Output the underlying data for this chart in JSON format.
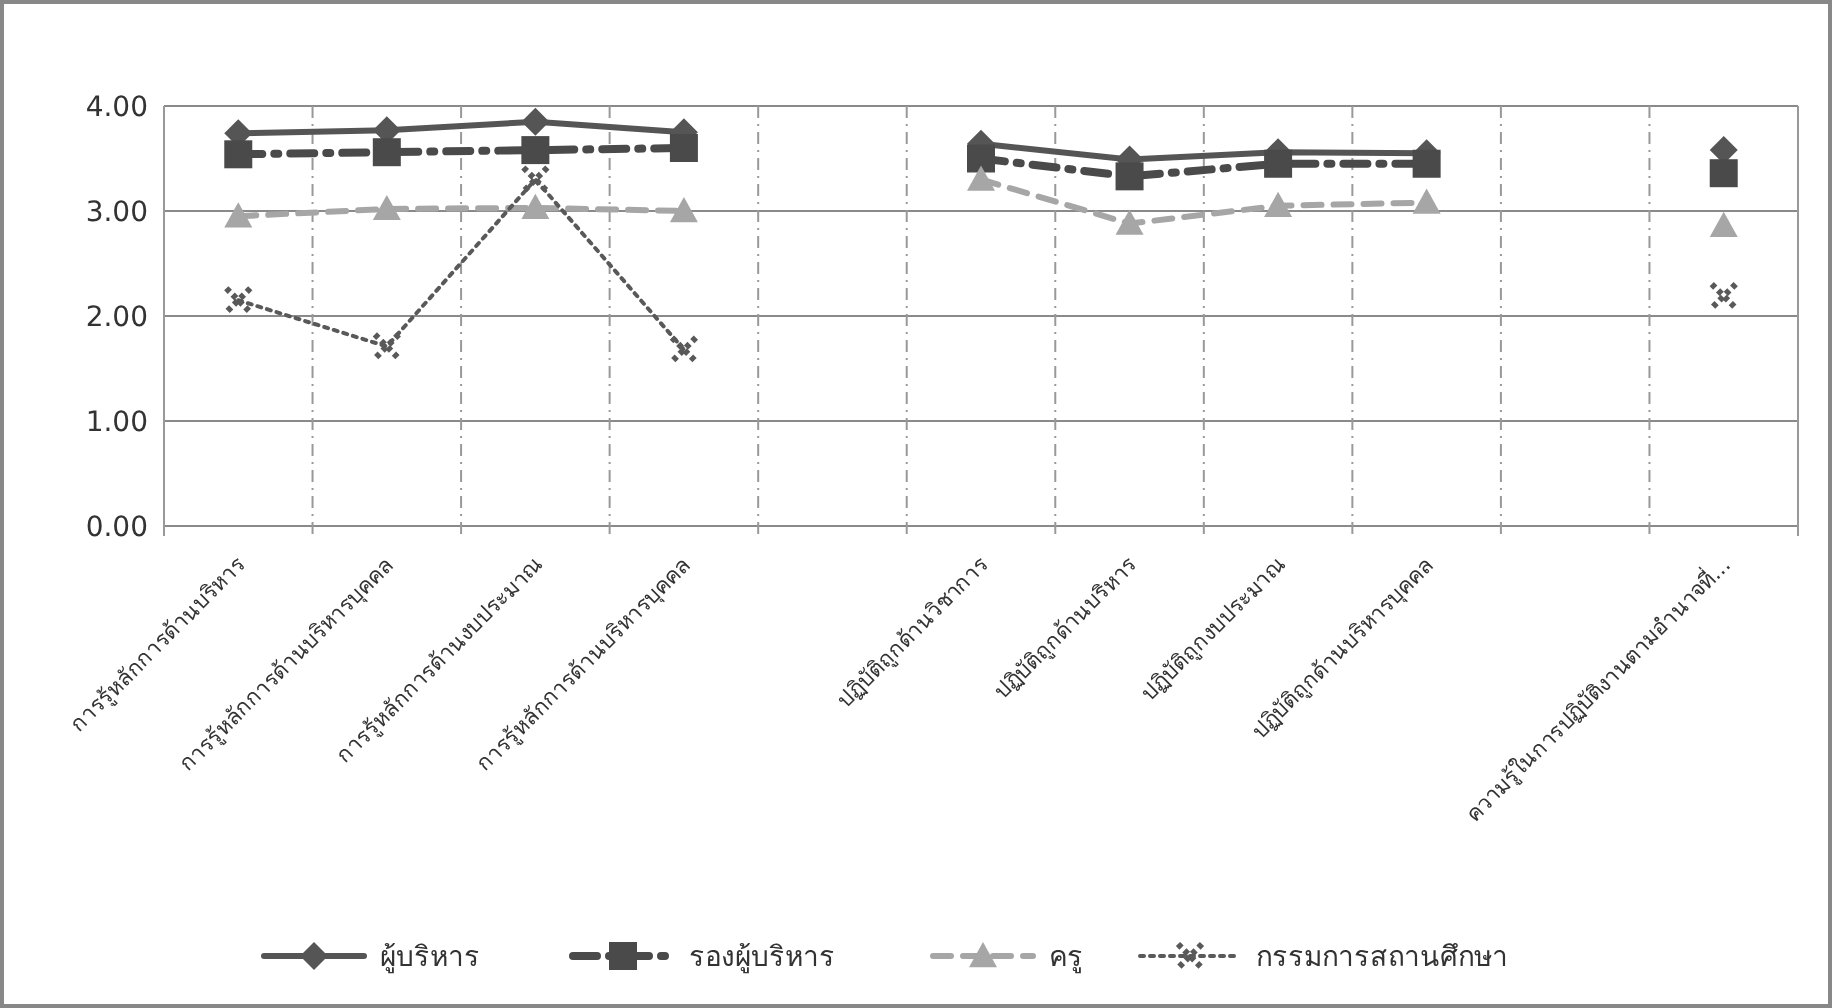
{
  "chart_data": {
    "type": "line",
    "categories": [
      "การรู้หลักการด้านบริหาร",
      "การรู้หลักการด้านบริหารบุคคล",
      "การรู้หลักการด้านงบประมาณ",
      "การรู้หลักการด้านบริหารบุคคล",
      null,
      "ปฏิบัติถูกด้านวิชาการ",
      "ปฏิบัติถูกด้านบริหาร",
      "ปฏิบัติถูกงบประมาณ",
      "ปฏิบัติถูกด้านบริหารบุคคล",
      null,
      "ความรู้ในการปฏิบัติงานตามอำนาจที่..."
    ],
    "series": [
      {
        "name": "ผู้บริหาร",
        "color": "#555555",
        "marker": "diamond",
        "line_style": "solid",
        "values": [
          3.74,
          3.77,
          3.85,
          3.75,
          null,
          3.64,
          3.49,
          3.56,
          3.55,
          null,
          3.58
        ]
      },
      {
        "name": "รองผู้บริหาร",
        "color": "#4a4a4a",
        "marker": "square",
        "line_style": "dashdot",
        "values": [
          3.54,
          3.56,
          3.58,
          3.6,
          null,
          3.5,
          3.33,
          3.45,
          3.45,
          null,
          3.36
        ]
      },
      {
        "name": "ครู",
        "color": "#a6a6a6",
        "marker": "triangle",
        "line_style": "dashed",
        "values": [
          2.95,
          3.02,
          3.03,
          3.0,
          null,
          3.3,
          2.88,
          3.05,
          3.08,
          null,
          2.86
        ]
      },
      {
        "name": "กรรมการสถานศึกษา",
        "color": "#595959",
        "marker": "cross",
        "line_style": "dotted",
        "values": [
          2.15,
          1.71,
          3.3,
          1.68,
          null,
          null,
          null,
          null,
          null,
          null,
          2.19
        ]
      }
    ],
    "ylim": [
      0,
      4
    ],
    "yticks": [
      {
        "value": 0,
        "label": "0.00"
      },
      {
        "value": 1,
        "label": "1.00"
      },
      {
        "value": 2,
        "label": "2.00"
      },
      {
        "value": 3,
        "label": "3.00"
      },
      {
        "value": 4,
        "label": "4.00"
      }
    ],
    "grid": true,
    "legend": "bottom"
  }
}
